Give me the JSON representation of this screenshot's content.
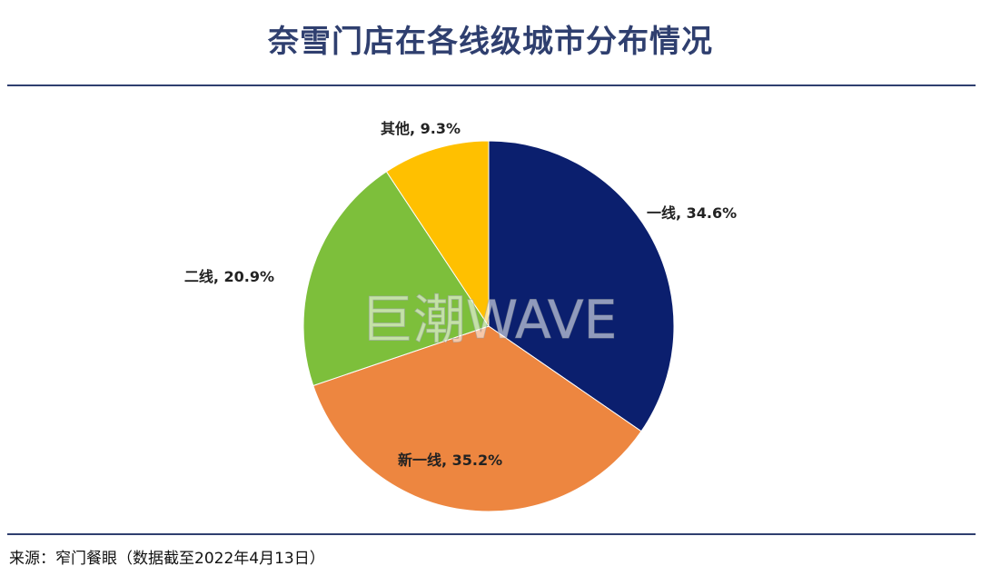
{
  "title": "奈雪门店在各线级城市分布情况",
  "source": "来源：窄门餐眼（数据截至2022年4月13日）",
  "watermark": "巨潮WAVE",
  "chart_data": {
    "type": "pie",
    "title": "奈雪门店在各线级城市分布情况",
    "slices": [
      {
        "label": "一线",
        "value": 34.6,
        "display": "一线, 34.6%",
        "color": "#0b1f6e"
      },
      {
        "label": "新一线",
        "value": 35.2,
        "display": "新一线, 35.2%",
        "color": "#ed8640"
      },
      {
        "label": "二线",
        "value": 20.9,
        "display": "二线, 20.9%",
        "color": "#7dbf3b"
      },
      {
        "label": "其他",
        "value": 9.3,
        "display": "其他, 9.3%",
        "color": "#ffc000"
      }
    ],
    "start_angle_deg": 0,
    "direction": "clockwise",
    "label_position": "outside"
  }
}
